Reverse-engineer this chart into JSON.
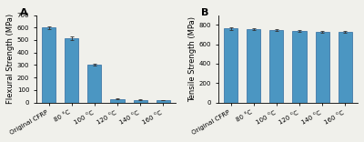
{
  "panel_A": {
    "label": "A",
    "categories": [
      "Original CFRP",
      "80 °C",
      "100 °C",
      "120 °C",
      "140 °C",
      "160 °C"
    ],
    "values": [
      600,
      515,
      305,
      28,
      22,
      18
    ],
    "errors": [
      10,
      15,
      8,
      3,
      3,
      2
    ],
    "ylabel": "Flexural Strength (MPa)",
    "ylim": [
      0,
      700
    ],
    "yticks": [
      0,
      100,
      200,
      300,
      400,
      500,
      600,
      700
    ]
  },
  "panel_B": {
    "label": "B",
    "categories": [
      "Original CFRP",
      "80 °C",
      "100 °C",
      "120 °C",
      "140 °C",
      "160 °C"
    ],
    "values": [
      760,
      752,
      745,
      735,
      730,
      728
    ],
    "errors": [
      12,
      10,
      10,
      12,
      10,
      10
    ],
    "ylabel": "Tensile Strength (MPa)",
    "ylim": [
      0,
      900
    ],
    "yticks": [
      0,
      200,
      400,
      600,
      800
    ]
  },
  "bar_color": "#4B96C2",
  "bar_edge_color": "#2E6A9E",
  "background_color": "#f0f0eb",
  "tick_fontsize": 5.0,
  "ylabel_fontsize": 6.0,
  "panel_label_fontsize": 8,
  "xticklabel_rotation": 30,
  "figsize": [
    4.0,
    1.56
  ],
  "dpi": 100
}
